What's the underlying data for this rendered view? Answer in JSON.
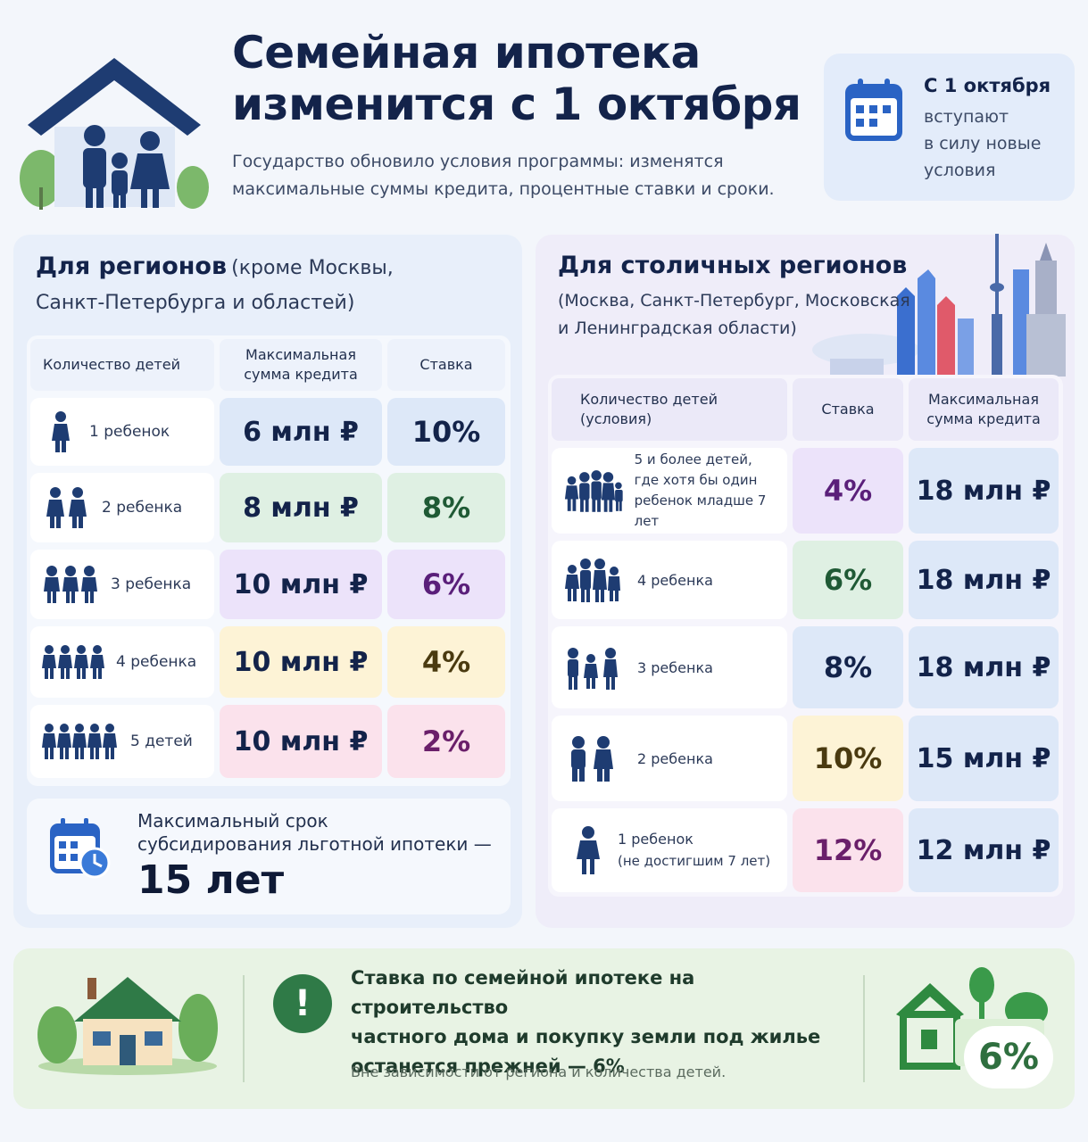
{
  "header": {
    "title_line1": "Семейная ипотека",
    "title_line2": "изменится с 1 октября",
    "subtitle_line1": "Государство обновило условия программы: изменятся",
    "subtitle_line2": "максимальные суммы кредита, процентные ставки и сроки.",
    "date_title": "С 1 октября",
    "date_text_1": "вступают",
    "date_text_2": "в силу новые",
    "date_text_3": "условия"
  },
  "regions": {
    "title": "Для регионов",
    "title_note_1": "(кроме Москвы,",
    "title_note_2": "Санкт-Петербурга и областей)",
    "col_children": "Количество детей",
    "col_sum_1": "Максимальная",
    "col_sum_2": "сумма кредита",
    "col_rate": "Ставка",
    "rows": [
      {
        "label": "1 ребенок",
        "sum": "6 млн ₽",
        "rate": "10%",
        "rate_color": "#13234a"
      },
      {
        "label": "2 ребенка",
        "sum": "8 млн ₽",
        "rate": "8%",
        "rate_color": "#1f5a35"
      },
      {
        "label": "3 ребенка",
        "sum": "10 млн ₽",
        "rate": "6%",
        "rate_color": "#5a1f7a"
      },
      {
        "label": "4 ребенка",
        "sum": "10 млн ₽",
        "rate": "4%",
        "rate_color": "#4a3a10"
      },
      {
        "label": "5 детей",
        "sum": "10 млн ₽",
        "rate": "2%",
        "rate_color": "#6a1f6a"
      }
    ],
    "term_line1": "Максимальный срок",
    "term_line2": "субсидирования льготной ипотеки —",
    "term_value": "15 лет"
  },
  "capital": {
    "title": "Для столичных регионов",
    "note_1": "(Москва, Санкт-Петербург, Московская",
    "note_2": "и Ленинградская области)",
    "col_children_1": "Количество детей",
    "col_children_2": "(условия)",
    "col_rate": "Ставка",
    "col_sum_1": "Максимальная",
    "col_sum_2": "сумма кредита",
    "rows": [
      {
        "label_1": "5 и более детей,",
        "label_2": "где хотя бы один",
        "label_3": "ребенок младше 7 лет",
        "rate": "4%",
        "sum": "18 млн ₽"
      },
      {
        "label_1": "4 ребенка",
        "label_2": "",
        "label_3": "",
        "rate": "6%",
        "sum": "18 млн ₽"
      },
      {
        "label_1": "3 ребенка",
        "label_2": "",
        "label_3": "",
        "rate": "8%",
        "sum": "18 млн ₽"
      },
      {
        "label_1": "2 ребенка",
        "label_2": "",
        "label_3": "",
        "rate": "10%",
        "sum": "15 млн ₽"
      },
      {
        "label_1": "1 ребенок",
        "label_2": "(не достигшим 7 лет)",
        "label_3": "",
        "rate": "12%",
        "sum": "12 млн ₽"
      }
    ]
  },
  "bottom": {
    "exclamation": "!",
    "line1": "Ставка по семейной ипотеке на строительство",
    "line2": "частного дома и покупку земли под жилье",
    "line3": "останется прежней — 6%",
    "note": "Вне зависимости от региона и количества детей.",
    "badge": "6%"
  },
  "colors": {
    "navy": "#13234a",
    "green": "#2f7a47",
    "blue_cell": "#dde8f8",
    "green_cell": "#dff0e3",
    "purple_cell": "#ece3fa",
    "yellow_cell": "#fdf3d6",
    "pink_cell": "#fbe2ec"
  }
}
